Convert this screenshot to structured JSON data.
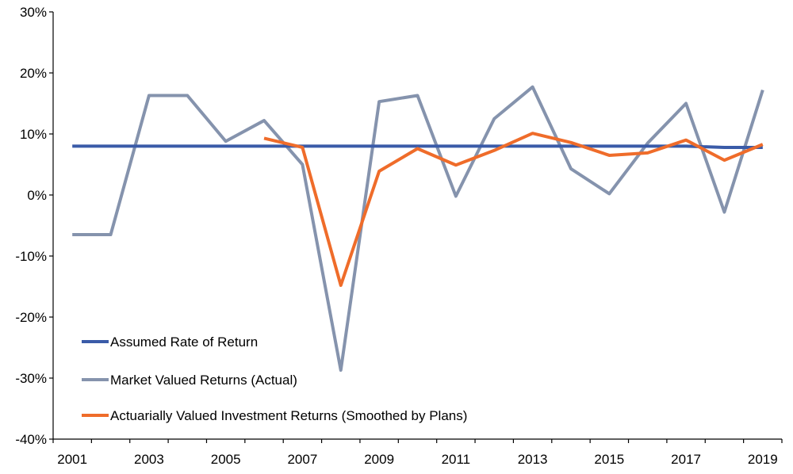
{
  "chart_data": {
    "type": "line",
    "title": "",
    "xlabel": "",
    "ylabel": "",
    "x": [
      2001,
      2002,
      2003,
      2004,
      2005,
      2006,
      2007,
      2008,
      2009,
      2010,
      2011,
      2012,
      2013,
      2014,
      2015,
      2016,
      2017,
      2018,
      2019
    ],
    "xlim": [
      2000.5,
      2019.5
    ],
    "x_tick_labels": [
      "2001",
      "2003",
      "2005",
      "2007",
      "2009",
      "2011",
      "2013",
      "2015",
      "2017",
      "2019"
    ],
    "x_tick_values": [
      2001,
      2003,
      2005,
      2007,
      2009,
      2011,
      2013,
      2015,
      2017,
      2019
    ],
    "ylim": [
      -40,
      30
    ],
    "y_ticks": [
      30,
      20,
      10,
      0,
      -10,
      -20,
      -30,
      -40
    ],
    "y_tick_labels": [
      "30%",
      "20%",
      "10%",
      "0%",
      "-10%",
      "-20%",
      "-30%",
      "-40%"
    ],
    "grid": false,
    "legend_position": "bottom-left",
    "series": [
      {
        "name": "Assumed Rate of Return",
        "color": "#3a5ba8",
        "values": [
          8.0,
          8.0,
          8.0,
          8.0,
          8.0,
          8.0,
          8.0,
          8.0,
          8.0,
          8.0,
          8.0,
          8.0,
          8.0,
          8.0,
          8.0,
          8.0,
          8.0,
          7.8,
          7.8
        ]
      },
      {
        "name": "Market Valued Returns (Actual)",
        "color": "#8593ad",
        "values": [
          -6.5,
          -6.5,
          16.3,
          16.3,
          8.8,
          12.2,
          5.0,
          -28.7,
          15.3,
          16.3,
          -0.2,
          12.5,
          17.7,
          4.3,
          0.2,
          8.5,
          15.0,
          -2.8,
          17.2
        ]
      },
      {
        "name": "Actuarially Valued Investment Returns (Smoothed by Plans)",
        "color": "#ef6c2a",
        "values": [
          null,
          null,
          null,
          null,
          null,
          9.3,
          7.8,
          -14.8,
          3.9,
          7.6,
          4.9,
          7.3,
          10.1,
          8.6,
          6.5,
          6.9,
          9.0,
          5.7,
          8.3
        ]
      }
    ]
  }
}
